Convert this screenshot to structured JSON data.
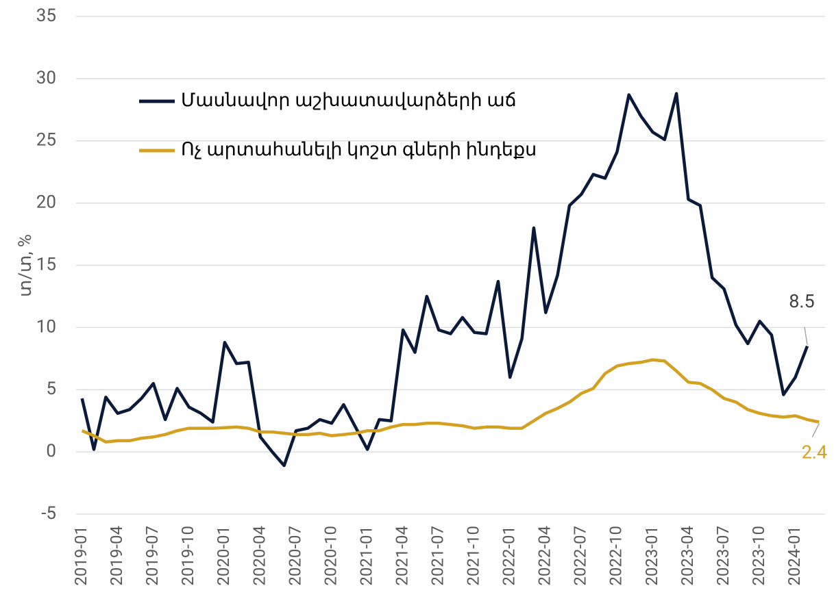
{
  "chart_data": {
    "type": "line",
    "y_label": "տ/տ, %",
    "categories": [
      "2019-01",
      null,
      null,
      "2019-04",
      null,
      null,
      "2019-07",
      null,
      null,
      "2019-10",
      null,
      null,
      "2020-01",
      null,
      null,
      "2020-04",
      null,
      null,
      "2020-07",
      null,
      null,
      "2020-10",
      null,
      null,
      "2021-01",
      null,
      null,
      "2021-04",
      null,
      null,
      "2021-07",
      null,
      null,
      "2021-10",
      null,
      null,
      "2022-01",
      null,
      null,
      "2022-04",
      null,
      null,
      "2022-07",
      null,
      null,
      "2022-10",
      null,
      null,
      "2023-01",
      null,
      null,
      "2023-04",
      null,
      null,
      "2023-07",
      null,
      null,
      "2023-10",
      null,
      null,
      "2024-01",
      null,
      null
    ],
    "series": [
      {
        "name": "Մասնավոր աշխատավարձերի աճ",
        "color": "#0c1a3a",
        "values": [
          4.3,
          0.2,
          4.4,
          3.1,
          3.4,
          4.3,
          5.5,
          2.6,
          5.1,
          3.6,
          3.1,
          2.4,
          8.8,
          7.1,
          7.2,
          1.2,
          0.0,
          -1.1,
          1.7,
          1.9,
          2.6,
          2.3,
          3.8,
          2.0,
          0.2,
          2.6,
          2.5,
          9.8,
          8.0,
          12.5,
          9.8,
          9.5,
          10.8,
          9.6,
          9.5,
          13.7,
          6.0,
          9.1,
          18.0,
          11.2,
          14.2,
          19.8,
          20.7,
          22.3,
          22.0,
          24.1,
          28.7,
          27.0,
          25.7,
          25.1,
          28.8,
          20.3,
          19.8,
          14.0,
          13.1,
          10.2,
          8.7,
          10.5,
          9.4,
          4.6,
          6.0,
          8.5,
          null
        ]
      },
      {
        "name": "Ոչ արտահանելի կոշտ գների ինդեքս",
        "color": "#d4a020",
        "values": [
          1.7,
          1.3,
          0.8,
          0.9,
          0.9,
          1.1,
          1.2,
          1.4,
          1.7,
          1.9,
          1.9,
          1.9,
          1.95,
          2.0,
          1.9,
          1.6,
          1.6,
          1.5,
          1.4,
          1.4,
          1.5,
          1.3,
          1.4,
          1.5,
          1.7,
          1.7,
          2.0,
          2.2,
          2.2,
          2.3,
          2.3,
          2.2,
          2.1,
          1.9,
          2.0,
          2.0,
          1.9,
          1.9,
          2.5,
          3.1,
          3.5,
          4.0,
          4.7,
          5.1,
          6.3,
          6.9,
          7.1,
          7.2,
          7.4,
          7.3,
          6.5,
          5.6,
          5.5,
          5.0,
          4.3,
          4.0,
          3.4,
          3.1,
          2.9,
          2.8,
          2.9,
          2.6,
          2.4
        ]
      }
    ],
    "ylim": [
      -5,
      35
    ],
    "yticks": [
      -5,
      0,
      5,
      10,
      15,
      20,
      25,
      30,
      35
    ],
    "grid": true
  }
}
